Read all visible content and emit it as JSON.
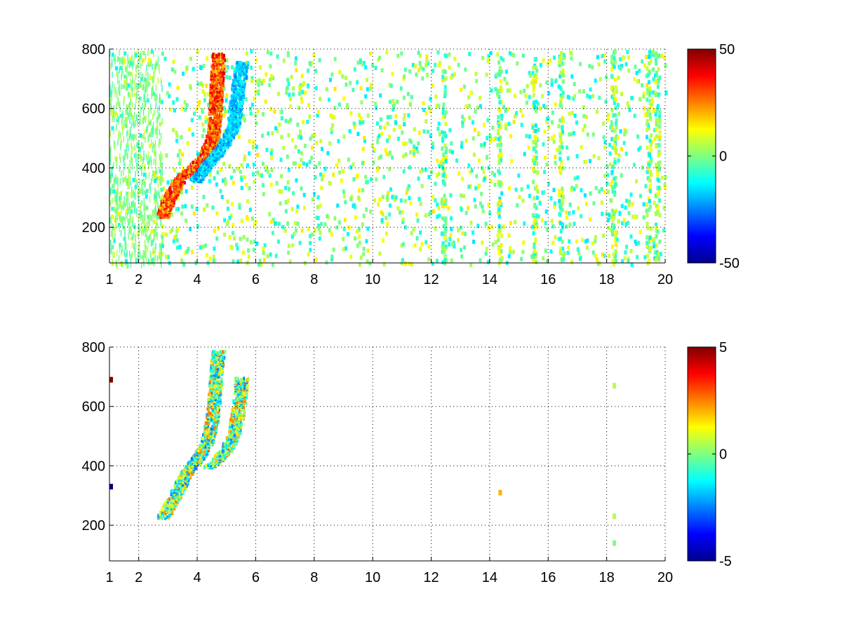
{
  "chart_data": [
    {
      "type": "heatmap",
      "title": "",
      "xlabel": "",
      "ylabel": "",
      "xlim": [
        1,
        20
      ],
      "ylim": [
        80,
        800
      ],
      "xticks": [
        1,
        2,
        4,
        6,
        8,
        10,
        12,
        14,
        16,
        18,
        20
      ],
      "yticks": [
        200,
        400,
        600,
        800
      ],
      "grid": true,
      "colormap": "jet",
      "clim": [
        -50,
        50
      ],
      "colorbar_ticks": [
        50,
        0,
        -50
      ],
      "features": [
        {
          "name": "positive ridge",
          "sign": "positive",
          "points": [
            [
              2.8,
              240
            ],
            [
              3.0,
              300
            ],
            [
              3.4,
              370
            ],
            [
              3.8,
              400
            ],
            [
              4.2,
              440
            ],
            [
              4.5,
              500
            ],
            [
              4.6,
              600
            ],
            [
              4.7,
              790
            ]
          ]
        },
        {
          "name": "negative ridge",
          "sign": "negative",
          "points": [
            [
              3.9,
              360
            ],
            [
              4.3,
              410
            ],
            [
              4.8,
              470
            ],
            [
              5.2,
              540
            ],
            [
              5.3,
              620
            ],
            [
              5.5,
              760
            ]
          ]
        }
      ],
      "scattered_noise": {
        "x_range": [
          1,
          20
        ],
        "y_range": [
          80,
          800
        ],
        "typical_value_range": [
          -15,
          15
        ]
      },
      "vertical_streaks_x": [
        12.4,
        14.3,
        15.5,
        16.4,
        18.2,
        19.4,
        19.7
      ]
    },
    {
      "type": "heatmap",
      "title": "",
      "xlabel": "",
      "ylabel": "",
      "xlim": [
        1,
        20
      ],
      "ylim": [
        80,
        800
      ],
      "xticks": [
        1,
        2,
        4,
        6,
        8,
        10,
        12,
        14,
        16,
        18,
        20
      ],
      "yticks": [
        200,
        400,
        600,
        800
      ],
      "grid": true,
      "colormap": "jet",
      "clim": [
        -5,
        5
      ],
      "colorbar_ticks": [
        5,
        0,
        -5
      ],
      "features": [
        {
          "name": "ridge A",
          "sign": "mixed",
          "points": [
            [
              2.8,
              230
            ],
            [
              3.2,
              300
            ],
            [
              3.6,
              380
            ],
            [
              4.0,
              430
            ],
            [
              4.3,
              480
            ],
            [
              4.5,
              560
            ],
            [
              4.6,
              680
            ],
            [
              4.7,
              790
            ]
          ]
        },
        {
          "name": "ridge B",
          "sign": "mixed",
          "points": [
            [
              4.4,
              400
            ],
            [
              4.9,
              450
            ],
            [
              5.2,
              500
            ],
            [
              5.4,
              600
            ],
            [
              5.5,
              700
            ]
          ]
        }
      ],
      "isolated_points": [
        {
          "x": 1.0,
          "y": 690,
          "value": 5
        },
        {
          "x": 1.0,
          "y": 330,
          "value": -5
        },
        {
          "x": 14.3,
          "y": 310,
          "value": 2
        },
        {
          "x": 18.2,
          "y": 670,
          "value": 0.5
        },
        {
          "x": 18.2,
          "y": 230,
          "value": 0.5
        },
        {
          "x": 18.2,
          "y": 140,
          "value": 0
        }
      ]
    }
  ]
}
